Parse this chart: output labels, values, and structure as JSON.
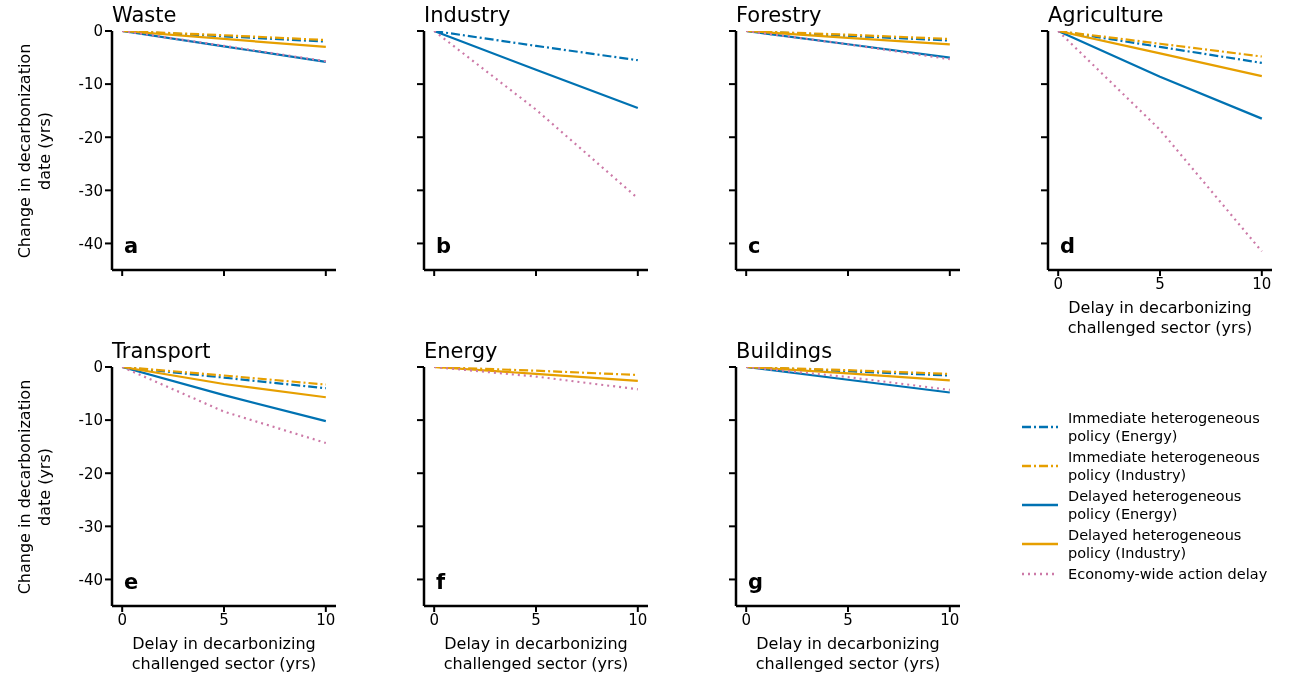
{
  "chart_data": [
    {
      "type": "line",
      "title": "Waste",
      "ylabel": "Change in decarbonization date (yrs)",
      "annotations": [
        "a"
      ],
      "x": [
        0,
        5,
        10
      ],
      "xlim": [
        -0.5,
        10.5
      ],
      "xticks": [
        0,
        5,
        10
      ],
      "ylim": [
        -45,
        0
      ],
      "yticks": [
        -40,
        -30,
        -20,
        -10,
        0
      ],
      "tick_labels": "y",
      "series": [
        {
          "color": "#0072b2",
          "line_style": "dashed",
          "values": [
            0,
            -1,
            -2
          ]
        },
        {
          "color": "#e69f00",
          "line_style": "dashed",
          "values": [
            0,
            -0.8,
            -1.7
          ]
        },
        {
          "color": "#0072b2",
          "line_style": "solid",
          "values": [
            0,
            -2.9,
            -5.8
          ]
        },
        {
          "color": "#e69f00",
          "line_style": "solid",
          "values": [
            0,
            -1.5,
            -3
          ]
        },
        {
          "color": "#cc79a7",
          "line_style": "dotted",
          "values": [
            0,
            -2.8,
            -5.7
          ]
        }
      ]
    },
    {
      "type": "line",
      "title": "Industry",
      "annotations": [
        "b"
      ],
      "x": [
        0,
        5,
        10
      ],
      "xlim": [
        -0.5,
        10.5
      ],
      "xticks": [
        0,
        5,
        10
      ],
      "ylim": [
        -45,
        0
      ],
      "yticks": [
        -40,
        -30,
        -20,
        -10,
        0
      ],
      "tick_labels": false,
      "series": [
        {
          "color": "#0072b2",
          "line_style": "dashed",
          "values": [
            0,
            -2.8,
            -5.5
          ]
        },
        {
          "color": "#0072b2",
          "line_style": "solid",
          "values": [
            0,
            -7.3,
            -14.5
          ]
        },
        {
          "color": "#cc79a7",
          "line_style": "dotted",
          "values": [
            0,
            -14.8,
            -31.5
          ]
        }
      ]
    },
    {
      "type": "line",
      "title": "Forestry",
      "annotations": [
        "c"
      ],
      "x": [
        0,
        5,
        10
      ],
      "xlim": [
        -0.5,
        10.5
      ],
      "xticks": [
        0,
        5,
        10
      ],
      "ylim": [
        -45,
        0
      ],
      "yticks": [
        -40,
        -30,
        -20,
        -10,
        0
      ],
      "tick_labels": false,
      "series": [
        {
          "color": "#0072b2",
          "line_style": "dashed",
          "values": [
            0,
            -0.9,
            -1.8
          ]
        },
        {
          "color": "#e69f00",
          "line_style": "dashed",
          "values": [
            0,
            -0.7,
            -1.5
          ]
        },
        {
          "color": "#0072b2",
          "line_style": "solid",
          "values": [
            0,
            -2.5,
            -5
          ]
        },
        {
          "color": "#e69f00",
          "line_style": "solid",
          "values": [
            0,
            -1.3,
            -2.5
          ]
        },
        {
          "color": "#cc79a7",
          "line_style": "dotted",
          "values": [
            0,
            -2.5,
            -5.3
          ]
        }
      ]
    },
    {
      "type": "line",
      "title": "Agriculture",
      "xlabel": "Delay in decarbonizing challenged sector (yrs)",
      "annotations": [
        "d"
      ],
      "x": [
        0,
        5,
        10
      ],
      "xlim": [
        -0.5,
        10.5
      ],
      "xticks": [
        0,
        5,
        10
      ],
      "ylim": [
        -45,
        0
      ],
      "yticks": [
        -40,
        -30,
        -20,
        -10,
        0
      ],
      "tick_labels": "x",
      "series": [
        {
          "color": "#0072b2",
          "line_style": "dashed",
          "values": [
            0,
            -3,
            -6
          ]
        },
        {
          "color": "#e69f00",
          "line_style": "dashed",
          "values": [
            0,
            -2.4,
            -4.8
          ]
        },
        {
          "color": "#0072b2",
          "line_style": "solid",
          "values": [
            0,
            -8.6,
            -16.5
          ]
        },
        {
          "color": "#e69f00",
          "line_style": "solid",
          "values": [
            0,
            -4.2,
            -8.5
          ]
        },
        {
          "color": "#cc79a7",
          "line_style": "dotted",
          "values": [
            0,
            -18.6,
            -41.5
          ]
        }
      ]
    },
    {
      "type": "line",
      "title": "Transport",
      "ylabel": "Change in decarbonization date (yrs)",
      "xlabel": "Delay in decarbonizing challenged sector (yrs)",
      "annotations": [
        "e"
      ],
      "x": [
        0,
        5,
        10
      ],
      "xlim": [
        -0.5,
        10.5
      ],
      "xticks": [
        0,
        5,
        10
      ],
      "ylim": [
        -45,
        0
      ],
      "yticks": [
        -40,
        -30,
        -20,
        -10,
        0
      ],
      "series": [
        {
          "color": "#0072b2",
          "line_style": "dashed",
          "values": [
            0,
            -2,
            -4
          ]
        },
        {
          "color": "#e69f00",
          "line_style": "dashed",
          "values": [
            0,
            -1.6,
            -3.3
          ]
        },
        {
          "color": "#0072b2",
          "line_style": "solid",
          "values": [
            0,
            -5.3,
            -10.2
          ]
        },
        {
          "color": "#e69f00",
          "line_style": "solid",
          "values": [
            0,
            -3.2,
            -5.7
          ]
        },
        {
          "color": "#cc79a7",
          "line_style": "dotted",
          "values": [
            0,
            -8.4,
            -14.3
          ]
        }
      ]
    },
    {
      "type": "line",
      "title": "Energy",
      "xlabel": "Delay in decarbonizing challenged sector (yrs)",
      "annotations": [
        "f"
      ],
      "x": [
        0,
        5,
        10
      ],
      "xlim": [
        -0.5,
        10.5
      ],
      "xticks": [
        0,
        5,
        10
      ],
      "ylim": [
        -45,
        0
      ],
      "yticks": [
        -40,
        -30,
        -20,
        -10,
        0
      ],
      "tick_labels": "x",
      "series": [
        {
          "color": "#e69f00",
          "line_style": "dashed",
          "values": [
            0,
            -0.7,
            -1.5
          ]
        },
        {
          "color": "#e69f00",
          "line_style": "solid",
          "values": [
            0,
            -1.3,
            -2.6
          ]
        },
        {
          "color": "#cc79a7",
          "line_style": "dotted",
          "values": [
            0,
            -1.8,
            -4.2
          ]
        }
      ]
    },
    {
      "type": "line",
      "title": "Buildings",
      "xlabel": "Delay in decarbonizing challenged sector (yrs)",
      "annotations": [
        "g"
      ],
      "x": [
        0,
        5,
        10
      ],
      "xlim": [
        -0.5,
        10.5
      ],
      "xticks": [
        0,
        5,
        10
      ],
      "ylim": [
        -45,
        0
      ],
      "yticks": [
        -40,
        -30,
        -20,
        -10,
        0
      ],
      "tick_labels": "x",
      "legend": "right",
      "series": [
        {
          "name": "Immediate heterogeneous policy (Energy)",
          "color": "#0072b2",
          "line_style": "dashed",
          "values": [
            0,
            -0.8,
            -1.6
          ]
        },
        {
          "name": "Immediate heterogeneous policy (Industry)",
          "color": "#e69f00",
          "line_style": "dashed",
          "values": [
            0,
            -0.6,
            -1.3
          ]
        },
        {
          "name": "Delayed heterogeneous policy (Energy)",
          "color": "#0072b2",
          "line_style": "solid",
          "values": [
            0,
            -2.4,
            -4.8
          ]
        },
        {
          "name": "Delayed heterogeneous policy (Industry)",
          "color": "#e69f00",
          "line_style": "solid",
          "values": [
            0,
            -1.2,
            -2.5
          ]
        },
        {
          "name": "Economy-wide action delay",
          "color": "#cc79a7",
          "line_style": "dotted",
          "values": [
            0,
            -1.9,
            -4.3
          ]
        }
      ]
    }
  ]
}
